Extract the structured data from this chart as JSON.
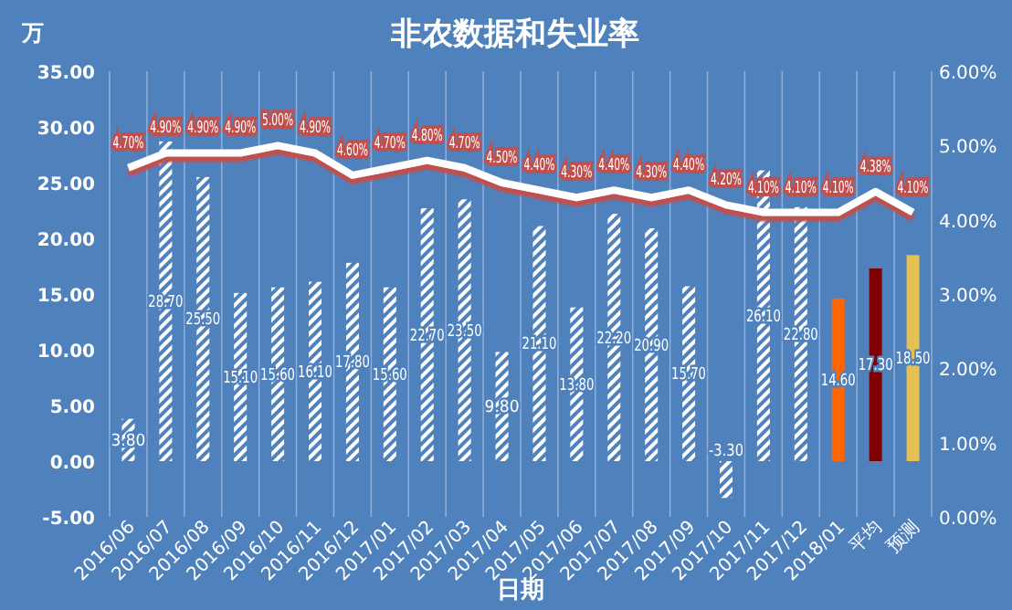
{
  "chart_data": {
    "type": "bar",
    "title": "非农数据和失业率",
    "xlabel": "日期",
    "ylabel": "万",
    "grid": "x",
    "categories": [
      "2016/06",
      "2016/07",
      "2016/08",
      "2016/09",
      "2016/10",
      "2016/11",
      "2016/12",
      "2017/01",
      "2017/02",
      "2017/03",
      "2017/04",
      "2017/05",
      "2017/06",
      "2017/07",
      "2017/08",
      "2017/09",
      "2017/10",
      "2017/11",
      "2017/12",
      "2018/01",
      "平均",
      "预测"
    ],
    "series": [
      {
        "colors": [
          "#ffffff",
          "#ffffff",
          "#ffffff",
          "#ffffff",
          "#ffffff",
          "#ffffff",
          "#ffffff",
          "#ffffff",
          "#ffffff",
          "#ffffff",
          "#ffffff",
          "#ffffff",
          "#ffffff",
          "#ffffff",
          "#ffffff",
          "#ffffff",
          "#ffffff",
          "#ffffff",
          "#ffffff",
          "#ff6600",
          "#800000",
          "#e6c050"
        ],
        "values": [
          3.8,
          28.7,
          25.5,
          15.1,
          15.6,
          16.1,
          17.8,
          15.6,
          22.7,
          23.5,
          9.8,
          21.1,
          13.8,
          22.2,
          20.9,
          15.7,
          -3.3,
          26.1,
          22.8,
          14.6,
          17.3,
          18.5
        ],
        "value_labels": [
          "3.80",
          "28.70",
          "25.50",
          "15.10",
          "15.60",
          "16.10",
          "17.80",
          "15.60",
          "22.70",
          "23.50",
          "9.80",
          "21.10",
          "13.80",
          "22.20",
          "20.90",
          "15.70",
          "-3.30",
          "26.10",
          "22.80",
          "14.60",
          "17.30",
          "18.50"
        ]
      },
      {
        "type": "line",
        "axis": "y2",
        "color": "#ffffff",
        "values": [
          4.7,
          4.9,
          4.9,
          4.9,
          5.0,
          4.9,
          4.6,
          4.7,
          4.8,
          4.7,
          4.5,
          4.4,
          4.3,
          4.4,
          4.3,
          4.4,
          4.2,
          4.1,
          4.1,
          4.1,
          4.38,
          4.1
        ],
        "value_labels": [
          "4.70%",
          "4.90%",
          "4.90%",
          "4.90%",
          "5.00%",
          "4.90%",
          "4.60%",
          "4.70%",
          "4.80%",
          "4.70%",
          "4.50%",
          "4.40%",
          "4.30%",
          "4.40%",
          "4.30%",
          "4.40%",
          "4.20%",
          "4.10%",
          "4.10%",
          "4.10%",
          "4.38%",
          "4.10%"
        ]
      }
    ],
    "ylim": [
      -5,
      35
    ],
    "yticks": [
      {
        "value": -5,
        "label": "-5.00"
      },
      {
        "value": 0,
        "label": "0.00"
      },
      {
        "value": 5,
        "label": "5.00"
      },
      {
        "value": 10,
        "label": "10.00"
      },
      {
        "value": 15,
        "label": "15.00"
      },
      {
        "value": 20,
        "label": "20.00"
      },
      {
        "value": 25,
        "label": "25.00"
      },
      {
        "value": 30,
        "label": "30.00"
      },
      {
        "value": 35,
        "label": "35.00"
      }
    ],
    "y2lim": [
      0,
      6
    ],
    "y2ticks": [
      {
        "value": 0,
        "label": "0.00%"
      },
      {
        "value": 1,
        "label": "1.00%"
      },
      {
        "value": 2,
        "label": "2.00%"
      },
      {
        "value": 3,
        "label": "3.00%"
      },
      {
        "value": 4,
        "label": "4.00%"
      },
      {
        "value": 5,
        "label": "5.00%"
      },
      {
        "value": 6,
        "label": "6.00%"
      }
    ]
  }
}
